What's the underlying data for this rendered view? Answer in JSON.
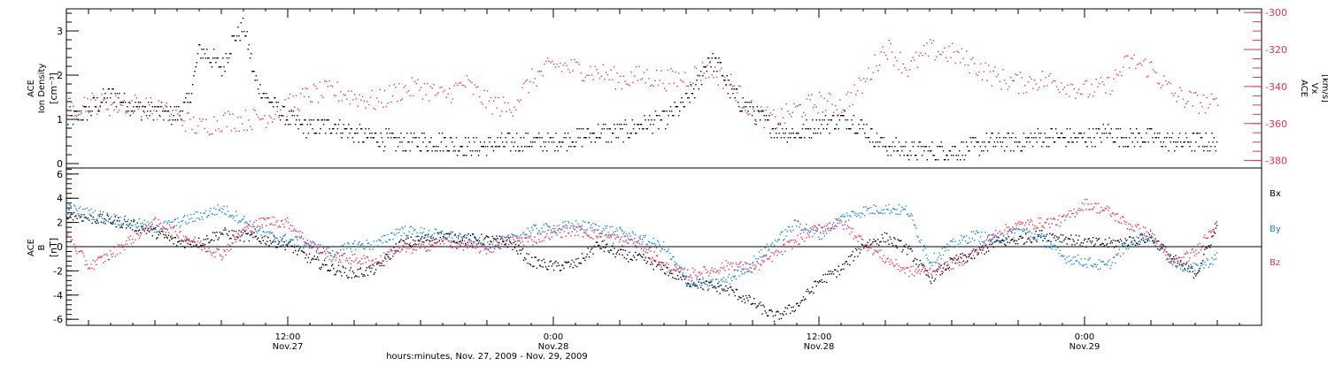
{
  "colors": {
    "density": "#000000",
    "velocity": "#e8305a",
    "bx": "#000000",
    "by": "#1a86e0",
    "bz": "#e8305a",
    "axis": "#000000"
  },
  "xaxis": {
    "label": "hours:minutes, Nov. 27, 2009 - Nov. 29, 2009",
    "ticks": [
      {
        "time": "12:00",
        "date": "Nov.27",
        "t": 12
      },
      {
        "time": "0:00",
        "date": "Nov.28",
        "t": 24
      },
      {
        "time": "12:00",
        "date": "Nov.28",
        "t": 36
      },
      {
        "time": "0:00",
        "date": "Nov.29",
        "t": 48
      }
    ]
  },
  "chart_data": [
    {
      "type": "scatter",
      "panel": "top",
      "ylabel_lines": [
        "ACE",
        "Ion Density"
      ],
      "ylabel_unit": "[cm⁻³]",
      "yticks": [
        "0",
        "1",
        "2",
        "3"
      ],
      "ylim": [
        -0.1,
        3.5
      ],
      "y2label_lines": [
        "ACE",
        "Vx"
      ],
      "y2label_unit": "[km/s]",
      "y2ticks": [
        "-380",
        "-360",
        "-340",
        "-320",
        "-300"
      ],
      "y2lim": [
        -384,
        -298
      ],
      "xlim_hours": [
        2.0,
        56.0
      ],
      "series": [
        {
          "key": "density",
          "axis": "left",
          "t": [
            2,
            3,
            4,
            5,
            6,
            7,
            7.5,
            8,
            8.5,
            9,
            9.5,
            10,
            10.5,
            11,
            11.5,
            12,
            13,
            14,
            15,
            16,
            17,
            18,
            19,
            20,
            21,
            22,
            23,
            24,
            25,
            26,
            27,
            28,
            29,
            30,
            30.5,
            31,
            31.5,
            32,
            33,
            34,
            35,
            36,
            37,
            37.5,
            38,
            38.5,
            39,
            40,
            41,
            42,
            43,
            44,
            45,
            46,
            47,
            48,
            49,
            50,
            51,
            52,
            53,
            54
          ],
          "v": [
            1.0,
            1.2,
            1.6,
            1.3,
            1.2,
            1.1,
            1.4,
            2.6,
            2.4,
            2.2,
            2.8,
            3.1,
            1.9,
            1.5,
            1.3,
            1.0,
            0.8,
            0.9,
            0.7,
            0.6,
            0.5,
            0.5,
            0.5,
            0.4,
            0.4,
            0.5,
            0.5,
            0.5,
            0.6,
            0.7,
            0.7,
            0.9,
            1.0,
            1.4,
            1.8,
            2.4,
            2.2,
            1.6,
            1.2,
            0.8,
            0.7,
            0.9,
            1.0,
            1.0,
            0.8,
            0.6,
            0.4,
            0.3,
            0.3,
            0.3,
            0.4,
            0.5,
            0.5,
            0.6,
            0.6,
            0.6,
            0.7,
            0.6,
            0.6,
            0.5,
            0.5,
            0.5
          ]
        },
        {
          "key": "velocity",
          "axis": "right",
          "t": [
            2,
            3,
            4,
            5,
            6,
            7,
            8,
            9,
            10,
            11,
            12,
            13,
            14,
            15,
            16,
            17,
            18,
            19,
            20,
            21,
            22,
            23,
            24,
            25,
            26,
            27,
            28,
            29,
            30,
            31,
            32,
            33,
            34,
            35,
            36,
            37,
            38,
            39,
            40,
            41,
            42,
            43,
            44,
            45,
            46,
            47,
            48,
            49,
            50,
            51,
            52,
            53,
            54
          ],
          "v": [
            -352,
            -348,
            -350,
            -349,
            -352,
            -356,
            -362,
            -358,
            -358,
            -356,
            -350,
            -344,
            -342,
            -345,
            -348,
            -342,
            -340,
            -345,
            -338,
            -348,
            -352,
            -336,
            -328,
            -330,
            -332,
            -336,
            -334,
            -336,
            -335,
            -330,
            -338,
            -354,
            -358,
            -352,
            -348,
            -350,
            -338,
            -318,
            -330,
            -320,
            -322,
            -328,
            -335,
            -338,
            -336,
            -338,
            -342,
            -340,
            -326,
            -330,
            -344,
            -348,
            -350
          ]
        }
      ]
    },
    {
      "type": "scatter",
      "panel": "bottom",
      "ylabel_lines": [
        "ACE",
        "B"
      ],
      "ylabel_unit": "[nT]",
      "yticks": [
        "-6",
        "-4",
        "-2",
        "0",
        "2",
        "4",
        "6"
      ],
      "ylim": [
        -6.5,
        6.5
      ],
      "xlim_hours": [
        2.0,
        56.0
      ],
      "legend": [
        "Bx",
        "By",
        "Bz"
      ],
      "series": [
        {
          "key": "bx",
          "t": [
            2,
            3,
            4,
            5,
            6,
            7,
            8,
            9,
            10,
            11,
            12,
            13,
            14,
            15,
            16,
            17,
            18,
            19,
            20,
            21,
            22,
            23,
            24,
            25,
            26,
            27,
            28,
            29,
            30,
            31,
            32,
            33,
            34,
            35,
            36,
            37,
            38,
            39,
            40,
            41,
            42,
            43,
            44,
            45,
            46,
            47,
            48,
            49,
            50,
            51,
            52,
            53,
            54
          ],
          "v": [
            2.8,
            2.4,
            2.2,
            1.8,
            1.2,
            0.4,
            0.4,
            1.2,
            0.9,
            0.6,
            0.2,
            -1.0,
            -1.8,
            -2.2,
            -1.8,
            0.2,
            0.6,
            0.9,
            0.7,
            0.6,
            0.4,
            -1.2,
            -1.6,
            -1.4,
            0.2,
            -0.6,
            -1.0,
            -1.8,
            -2.8,
            -3.2,
            -3.6,
            -4.6,
            -5.8,
            -4.8,
            -2.8,
            -1.8,
            0.2,
            0.8,
            -0.2,
            -2.6,
            -1.2,
            -0.6,
            0.4,
            0.6,
            1.0,
            0.8,
            0.4,
            0.3,
            0.5,
            0.8,
            -1.0,
            -2.2,
            1.8
          ]
        },
        {
          "key": "by",
          "t": [
            2,
            3,
            4,
            5,
            6,
            7,
            8,
            9,
            10,
            11,
            12,
            13,
            14,
            15,
            16,
            17,
            18,
            19,
            20,
            21,
            22,
            23,
            24,
            25,
            26,
            27,
            28,
            29,
            30,
            31,
            32,
            33,
            34,
            35,
            36,
            37,
            38,
            39,
            40,
            41,
            42,
            43,
            44,
            45,
            46,
            47,
            48,
            49,
            50,
            51,
            52,
            53,
            54
          ],
          "v": [
            3.2,
            2.8,
            2.4,
            2.0,
            1.6,
            2.0,
            2.6,
            3.2,
            2.2,
            1.0,
            0.6,
            0.2,
            -0.6,
            0.2,
            0.2,
            1.4,
            1.2,
            1.0,
            0.6,
            0.2,
            0.6,
            1.4,
            1.6,
            1.8,
            1.6,
            1.2,
            0.6,
            0.0,
            -2.8,
            -3.2,
            -2.6,
            -1.2,
            0.4,
            2.0,
            1.0,
            2.4,
            3.0,
            3.2,
            3.0,
            -1.2,
            0.2,
            1.0,
            0.6,
            1.4,
            0.8,
            -0.8,
            -1.2,
            -1.6,
            0.4,
            1.0,
            -1.4,
            -1.8,
            -0.8
          ]
        },
        {
          "key": "bz",
          "t": [
            2,
            3,
            4,
            5,
            6,
            7,
            8,
            9,
            10,
            11,
            12,
            13,
            14,
            15,
            16,
            17,
            18,
            19,
            20,
            21,
            22,
            23,
            24,
            25,
            26,
            27,
            28,
            29,
            30,
            31,
            32,
            33,
            34,
            35,
            36,
            37,
            38,
            39,
            40,
            41,
            42,
            43,
            44,
            45,
            46,
            47,
            48,
            49,
            50,
            51,
            52,
            53,
            54
          ],
          "v": [
            1.0,
            -1.6,
            -0.6,
            0.8,
            2.0,
            1.2,
            0.2,
            -0.6,
            1.4,
            2.2,
            2.0,
            0.2,
            -0.8,
            -1.0,
            -1.2,
            -0.2,
            0.0,
            0.4,
            0.2,
            -0.2,
            0.6,
            0.6,
            1.2,
            1.4,
            1.0,
            0.6,
            0.2,
            -1.6,
            -2.2,
            -2.0,
            -1.4,
            -1.8,
            -0.6,
            0.6,
            1.6,
            2.0,
            0.4,
            -1.0,
            -2.0,
            -2.0,
            -1.4,
            -0.6,
            1.2,
            1.8,
            2.0,
            2.2,
            3.6,
            3.0,
            1.8,
            1.0,
            -1.4,
            -0.4,
            2.4
          ]
        }
      ]
    }
  ]
}
